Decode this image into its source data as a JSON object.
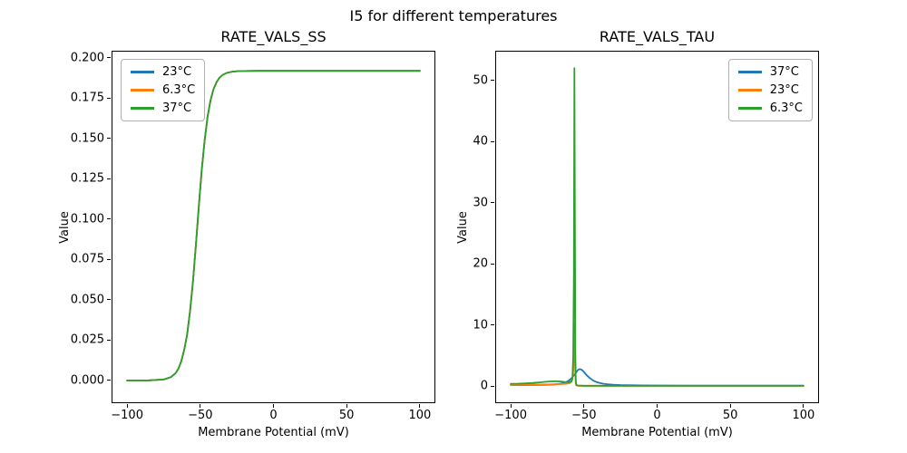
{
  "figure": {
    "suptitle": "I5 for different temperatures",
    "background_color": "#ffffff",
    "palette": {
      "blue": "#1f77b4",
      "orange": "#ff7f0e",
      "green": "#2ca02c"
    }
  },
  "chart_data": [
    {
      "type": "line",
      "title": "RATE_VALS_SS",
      "xlabel": "Membrane Potential (mV)",
      "ylabel": "Value",
      "grid": false,
      "xlim": [
        -110,
        110
      ],
      "ylim": [
        -0.0135,
        0.2039
      ],
      "xticks": [
        -100,
        -50,
        0,
        50,
        100
      ],
      "xtick_labels": [
        "−100",
        "−50",
        "0",
        "50",
        "100"
      ],
      "yticks": [
        0.0,
        0.025,
        0.05,
        0.075,
        0.1,
        0.125,
        0.15,
        0.175,
        0.2
      ],
      "ytick_labels": [
        "0.000",
        "0.025",
        "0.050",
        "0.075",
        "0.100",
        "0.125",
        "0.150",
        "0.175",
        "0.200"
      ],
      "legend": {
        "position": "upper left"
      },
      "series": [
        {
          "name": "23°C",
          "color": "#1f77b4",
          "points": [
            [
              -100,
              0.0
            ],
            [
              -85,
              0.0001
            ],
            [
              -75,
              0.0006
            ],
            [
              -70,
              0.0021
            ],
            [
              -67,
              0.0044
            ],
            [
              -65,
              0.0072
            ],
            [
              -63,
              0.0118
            ],
            [
              -61,
              0.019
            ],
            [
              -59,
              0.0284
            ],
            [
              -57,
              0.0428
            ],
            [
              -55,
              0.0616
            ],
            [
              -53,
              0.0841
            ],
            [
              -51,
              0.1079
            ],
            [
              -49,
              0.1304
            ],
            [
              -47,
              0.1492
            ],
            [
              -45,
              0.1636
            ],
            [
              -43,
              0.1737
            ],
            [
              -41,
              0.1805
            ],
            [
              -39,
              0.1848
            ],
            [
              -37,
              0.1876
            ],
            [
              -35,
              0.1893
            ],
            [
              -32,
              0.1907
            ],
            [
              -28,
              0.1915
            ],
            [
              -24,
              0.1918
            ],
            [
              -20,
              0.1919
            ],
            [
              -10,
              0.192
            ],
            [
              0,
              0.192
            ],
            [
              25,
              0.192
            ],
            [
              50,
              0.192
            ],
            [
              75,
              0.192
            ],
            [
              100,
              0.192
            ]
          ]
        },
        {
          "name": "6.3°C",
          "color": "#ff7f0e",
          "points": [
            [
              -100,
              0.0
            ],
            [
              -85,
              0.0001
            ],
            [
              -75,
              0.0006
            ],
            [
              -70,
              0.0021
            ],
            [
              -67,
              0.0044
            ],
            [
              -65,
              0.0072
            ],
            [
              -63,
              0.0118
            ],
            [
              -61,
              0.019
            ],
            [
              -59,
              0.0284
            ],
            [
              -57,
              0.0428
            ],
            [
              -55,
              0.0616
            ],
            [
              -53,
              0.0841
            ],
            [
              -51,
              0.1079
            ],
            [
              -49,
              0.1304
            ],
            [
              -47,
              0.1492
            ],
            [
              -45,
              0.1636
            ],
            [
              -43,
              0.1737
            ],
            [
              -41,
              0.1805
            ],
            [
              -39,
              0.1848
            ],
            [
              -37,
              0.1876
            ],
            [
              -35,
              0.1893
            ],
            [
              -32,
              0.1907
            ],
            [
              -28,
              0.1915
            ],
            [
              -24,
              0.1918
            ],
            [
              -20,
              0.1919
            ],
            [
              -10,
              0.192
            ],
            [
              0,
              0.192
            ],
            [
              25,
              0.192
            ],
            [
              50,
              0.192
            ],
            [
              75,
              0.192
            ],
            [
              100,
              0.192
            ]
          ]
        },
        {
          "name": "37°C",
          "color": "#2ca02c",
          "points": [
            [
              -100,
              0.0
            ],
            [
              -85,
              0.0001
            ],
            [
              -75,
              0.0006
            ],
            [
              -70,
              0.0021
            ],
            [
              -67,
              0.0044
            ],
            [
              -65,
              0.0072
            ],
            [
              -63,
              0.0118
            ],
            [
              -61,
              0.019
            ],
            [
              -59,
              0.0284
            ],
            [
              -57,
              0.0428
            ],
            [
              -55,
              0.0616
            ],
            [
              -53,
              0.0841
            ],
            [
              -51,
              0.1079
            ],
            [
              -49,
              0.1304
            ],
            [
              -47,
              0.1492
            ],
            [
              -45,
              0.1636
            ],
            [
              -43,
              0.1737
            ],
            [
              -41,
              0.1805
            ],
            [
              -39,
              0.1848
            ],
            [
              -37,
              0.1876
            ],
            [
              -35,
              0.1893
            ],
            [
              -32,
              0.1907
            ],
            [
              -28,
              0.1915
            ],
            [
              -24,
              0.1918
            ],
            [
              -20,
              0.1919
            ],
            [
              -10,
              0.192
            ],
            [
              0,
              0.192
            ],
            [
              25,
              0.192
            ],
            [
              50,
              0.192
            ],
            [
              75,
              0.192
            ],
            [
              100,
              0.192
            ]
          ]
        }
      ]
    },
    {
      "type": "line",
      "title": "RATE_VALS_TAU",
      "xlabel": "Membrane Potential (mV)",
      "ylabel": "Value",
      "grid": false,
      "xlim": [
        -110,
        110
      ],
      "ylim": [
        -2.6,
        54.7
      ],
      "xticks": [
        -100,
        -50,
        0,
        50,
        100
      ],
      "xtick_labels": [
        "−100",
        "−50",
        "0",
        "50",
        "100"
      ],
      "yticks": [
        0,
        10,
        20,
        30,
        40,
        50
      ],
      "ytick_labels": [
        "0",
        "10",
        "20",
        "30",
        "40",
        "50"
      ],
      "legend": {
        "position": "upper right"
      },
      "series": [
        {
          "name": "37°C",
          "color": "#1f77b4",
          "points": [
            [
              -100,
              0.22
            ],
            [
              -90,
              0.22
            ],
            [
              -80,
              0.24
            ],
            [
              -75,
              0.26
            ],
            [
              -70,
              0.32
            ],
            [
              -67,
              0.4
            ],
            [
              -64,
              0.55
            ],
            [
              -62,
              0.72
            ],
            [
              -60,
              1.0
            ],
            [
              -58,
              1.45
            ],
            [
              -56,
              2.05
            ],
            [
              -55,
              2.4
            ],
            [
              -54,
              2.7
            ],
            [
              -53,
              2.82
            ],
            [
              -52,
              2.78
            ],
            [
              -51,
              2.6
            ],
            [
              -50,
              2.35
            ],
            [
              -48,
              1.8
            ],
            [
              -46,
              1.35
            ],
            [
              -44,
              1.0
            ],
            [
              -42,
              0.76
            ],
            [
              -40,
              0.6
            ],
            [
              -37,
              0.44
            ],
            [
              -34,
              0.34
            ],
            [
              -30,
              0.27
            ],
            [
              -25,
              0.22
            ],
            [
              -20,
              0.19
            ],
            [
              -15,
              0.17
            ],
            [
              -10,
              0.16
            ],
            [
              0,
              0.14
            ],
            [
              20,
              0.13
            ],
            [
              50,
              0.12
            ],
            [
              100,
              0.12
            ]
          ]
        },
        {
          "name": "23°C",
          "color": "#ff7f0e",
          "points": [
            [
              -100,
              0.27
            ],
            [
              -90,
              0.28
            ],
            [
              -80,
              0.3
            ],
            [
              -75,
              0.31
            ],
            [
              -70,
              0.33
            ],
            [
              -66,
              0.36
            ],
            [
              -63,
              0.4
            ],
            [
              -61,
              0.46
            ],
            [
              -59.5,
              0.55
            ],
            [
              -58.5,
              0.75
            ],
            [
              -57.8,
              1.2
            ],
            [
              -57.2,
              2.8
            ],
            [
              -56.8,
              6.5
            ],
            [
              -56.5,
              10.3
            ],
            [
              -56.2,
              7.0
            ],
            [
              -55.9,
              2.0
            ],
            [
              -55.6,
              0.5
            ],
            [
              -55.2,
              0.15
            ],
            [
              -54,
              0.1
            ],
            [
              -52,
              0.09
            ],
            [
              -50,
              0.09
            ],
            [
              -45,
              0.09
            ],
            [
              -40,
              0.09
            ],
            [
              -30,
              0.08
            ],
            [
              -20,
              0.08
            ],
            [
              -10,
              0.08
            ],
            [
              0,
              0.08
            ],
            [
              25,
              0.08
            ],
            [
              50,
              0.08
            ],
            [
              100,
              0.08
            ]
          ]
        },
        {
          "name": "6.3°C",
          "color": "#2ca02c",
          "points": [
            [
              -100,
              0.42
            ],
            [
              -95,
              0.44
            ],
            [
              -90,
              0.48
            ],
            [
              -85,
              0.55
            ],
            [
              -80,
              0.65
            ],
            [
              -76,
              0.75
            ],
            [
              -72,
              0.82
            ],
            [
              -69,
              0.84
            ],
            [
              -66,
              0.8
            ],
            [
              -63,
              0.72
            ],
            [
              -61,
              0.68
            ],
            [
              -59.5,
              0.7
            ],
            [
              -58.5,
              0.85
            ],
            [
              -57.8,
              1.5
            ],
            [
              -57.3,
              5.0
            ],
            [
              -56.9,
              18.0
            ],
            [
              -56.5,
              52.0
            ],
            [
              -56.2,
              30.0
            ],
            [
              -55.9,
              6.0
            ],
            [
              -55.6,
              1.0
            ],
            [
              -55.2,
              0.25
            ],
            [
              -54,
              0.13
            ],
            [
              -52,
              0.11
            ],
            [
              -50,
              0.1
            ],
            [
              -45,
              0.1
            ],
            [
              -40,
              0.1
            ],
            [
              -30,
              0.1
            ],
            [
              -20,
              0.1
            ],
            [
              -10,
              0.1
            ],
            [
              0,
              0.1
            ],
            [
              25,
              0.1
            ],
            [
              50,
              0.1
            ],
            [
              100,
              0.1
            ]
          ]
        }
      ]
    }
  ]
}
